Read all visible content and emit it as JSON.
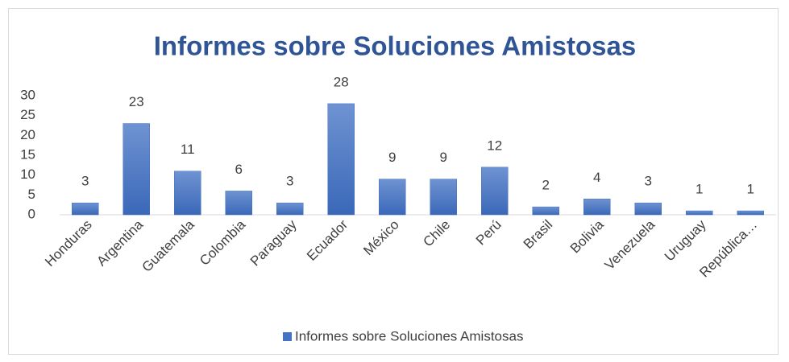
{
  "chart_data": {
    "type": "bar",
    "title": "Informes sobre Soluciones Amistosas",
    "categories": [
      "Honduras",
      "Argentina",
      "Guatemala",
      "Colombia",
      "Paraguay",
      "Ecuador",
      "México",
      "Chile",
      "Perú",
      "Brasil",
      "Bolivia",
      "Venezuela",
      "Uruguay",
      "República…"
    ],
    "series": [
      {
        "name": "Informes sobre Soluciones Amistosas",
        "color": "#4472c4",
        "values": [
          3,
          23,
          11,
          6,
          3,
          28,
          9,
          9,
          12,
          2,
          4,
          3,
          1,
          1
        ]
      }
    ],
    "ylim": [
      0,
      30
    ],
    "yticks": [
      0,
      5,
      10,
      15,
      20,
      25,
      30
    ],
    "grid": false,
    "legend": "bottom"
  }
}
